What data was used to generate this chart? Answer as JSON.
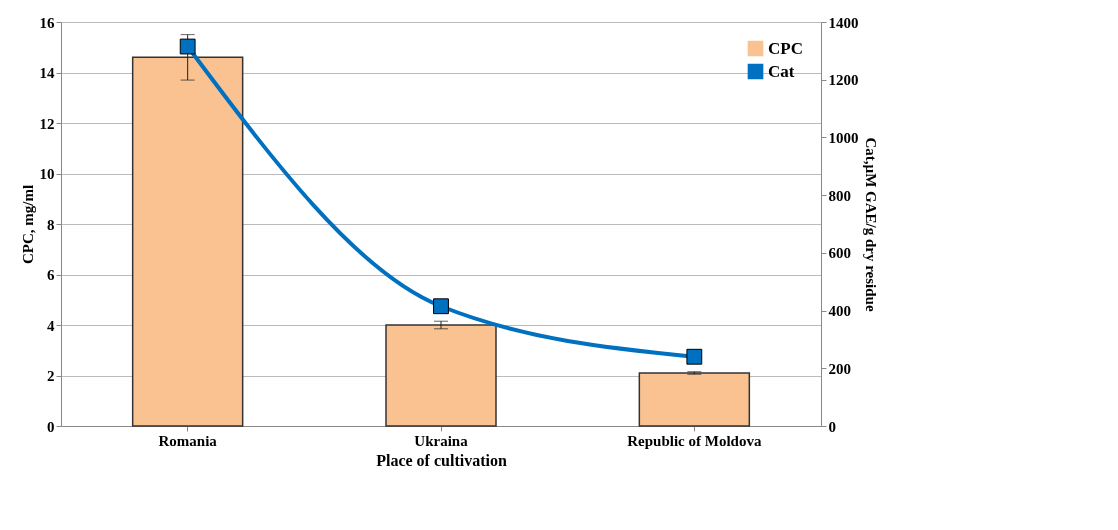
{
  "chart_data": {
    "type": "bar",
    "xlabel": "Place of cultivation",
    "ylabel": "CPC, mg/ml",
    "y2label": "Cat,µM GAE/g dry residue",
    "categories": [
      "Romania",
      "Ukraina",
      "Republic of Moldova"
    ],
    "series": [
      {
        "name": "CPC",
        "color": "#f9c290",
        "values": [
          14.6,
          4.0,
          2.1
        ],
        "errors": [
          0.9,
          0.15,
          0.05
        ]
      },
      {
        "name": "Cat",
        "type": "line",
        "axis": "y2",
        "color": "#0070c0",
        "values": [
          1315,
          415,
          240
        ]
      }
    ],
    "ylim": [
      0,
      16
    ],
    "yticks": [
      0,
      2,
      4,
      6,
      8,
      10,
      12,
      14,
      16
    ],
    "y2lim": [
      0,
      1400
    ],
    "y2ticks": [
      0,
      200,
      400,
      600,
      800,
      1000,
      1200,
      1400
    ],
    "grid": "y",
    "legend": "top right",
    "marker": "square"
  }
}
